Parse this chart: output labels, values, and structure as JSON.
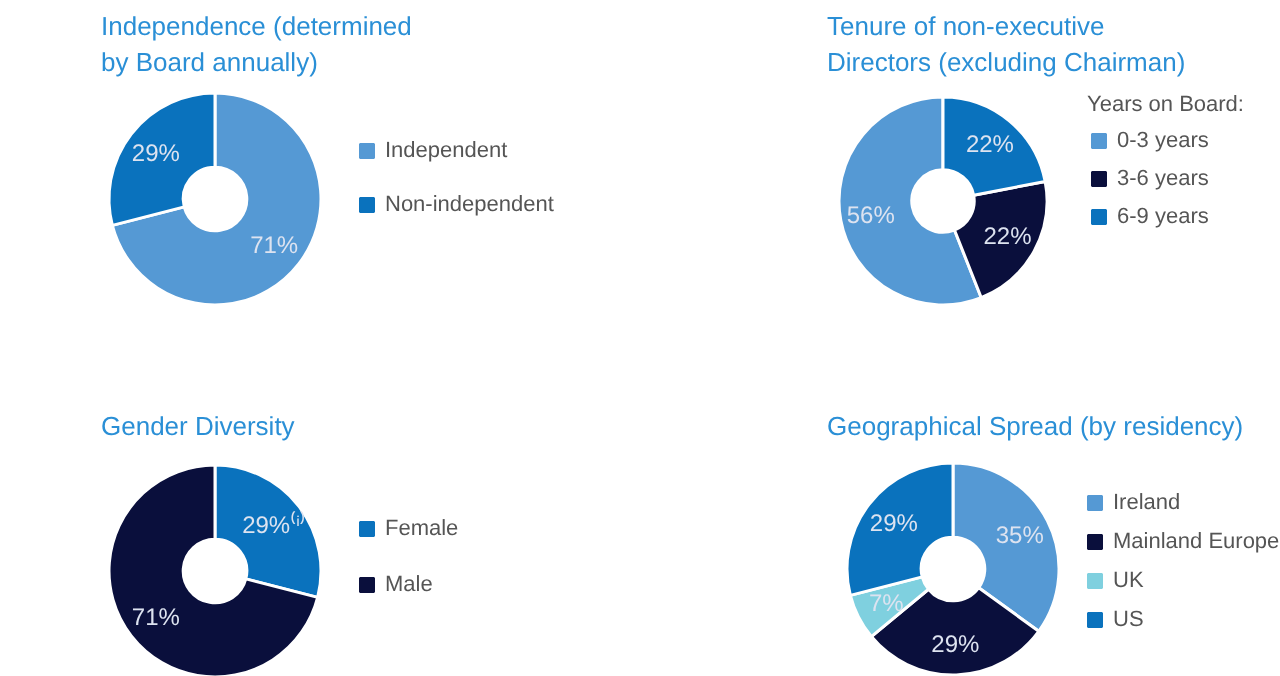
{
  "chart_data": [
    {
      "type": "donut",
      "title": "Independence (determined by Board annually)",
      "categories": [
        "Independent",
        "Non-independent"
      ],
      "values": [
        71,
        29
      ],
      "colors": [
        "#5599d4",
        "#0a72bd"
      ],
      "value_labels": [
        "71%",
        "29%"
      ],
      "legend": "right"
    },
    {
      "type": "donut",
      "title": "Tenure of non-executive Directors (excluding Chairman)",
      "legend_title": "Years on Board:",
      "categories": [
        "0-3 years",
        "3-6 years",
        "6-9 years"
      ],
      "values": [
        56,
        22,
        22
      ],
      "colors": [
        "#5599d4",
        "#0a0f3c",
        "#0a72bd"
      ],
      "value_labels": [
        "56%",
        "22%",
        "22%"
      ],
      "legend": "right"
    },
    {
      "type": "donut",
      "title": "Gender Diversity",
      "categories": [
        "Female",
        "Male"
      ],
      "values": [
        29,
        71
      ],
      "colors": [
        "#0a72bd",
        "#0a0f3c"
      ],
      "value_labels": [
        "29%⁽ⁱ⁾",
        "71%"
      ],
      "legend": "right"
    },
    {
      "type": "donut",
      "title": "Geographical Spread (by residency)",
      "categories": [
        "Ireland",
        "Mainland Europe",
        "UK",
        "US"
      ],
      "values": [
        35,
        29,
        7,
        29
      ],
      "colors": [
        "#5599d4",
        "#0a0f3c",
        "#7fd0df",
        "#0a72bd"
      ],
      "value_labels": [
        "35%",
        "29%",
        "7%",
        "29%"
      ],
      "legend": "right"
    }
  ]
}
